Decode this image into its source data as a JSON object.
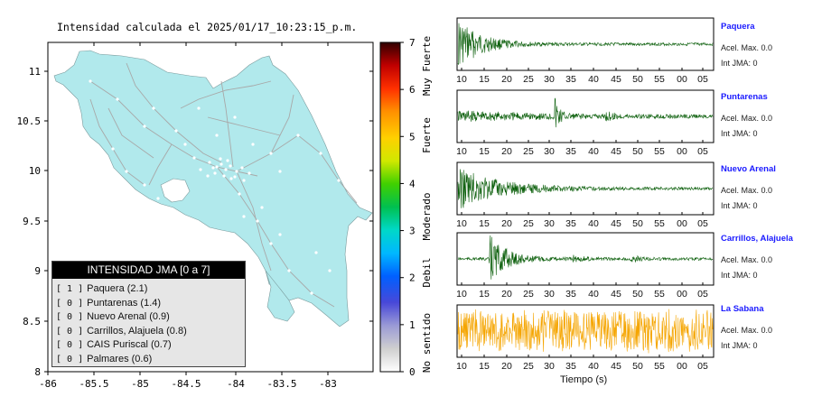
{
  "map": {
    "title": "Intensidad calculada el 2025/01/17_10:23:15_p.m.",
    "x_ticks": [
      "-86",
      "-85.5",
      "-85",
      "-84.5",
      "-84",
      "-83.5",
      "-83"
    ],
    "y_ticks": [
      "11",
      "10.5",
      "10",
      "9.5",
      "9",
      "8.5",
      "8"
    ]
  },
  "scale": {
    "ticks": [
      "7",
      "6",
      "5",
      "4",
      "3",
      "2",
      "1",
      "0"
    ],
    "labels": [
      "Muy Fuerte",
      "Fuerte",
      "Moderado",
      "Debil",
      "No sentido"
    ]
  },
  "legend": {
    "title": "INTENSIDAD JMA [0 a 7]",
    "rows": [
      {
        "level": "[ 1 ]",
        "text": "Paquera (2.1)"
      },
      {
        "level": "[ 0 ]",
        "text": "Puntarenas (1.4)"
      },
      {
        "level": "[ 0 ]",
        "text": "Nuevo Arenal (0.9)"
      },
      {
        "level": "[ 0 ]",
        "text": "Carrillos, Alajuela (0.8)"
      },
      {
        "level": "[ 0 ]",
        "text": "CAIS Puriscal (0.7)"
      },
      {
        "level": "[ 0 ]",
        "text": "Palmares (0.6)"
      }
    ]
  },
  "stations": [
    {
      "name": "Paquera",
      "accel": "Acel. Max. 0.0",
      "int": "Int JMA: 0",
      "color": "#0a5e0a"
    },
    {
      "name": "Puntarenas",
      "accel": "Acel. Max. 0.0",
      "int": "Int JMA: 0",
      "color": "#0a5e0a"
    },
    {
      "name": "Nuevo Arenal",
      "accel": "Acel. Max. 0.0",
      "int": "Int JMA: 0",
      "color": "#0a5e0a"
    },
    {
      "name": "Carrillos, Alajuela",
      "accel": "Acel. Max. 0.0",
      "int": "Int JMA: 0",
      "color": "#0a5e0a"
    },
    {
      "name": "La Sabana",
      "accel": "Acel. Max. 0.0",
      "int": "Int JMA: 0",
      "color": "#f5a500"
    }
  ],
  "time_ticks": [
    "10",
    "15",
    "20",
    "25",
    "30",
    "35",
    "40",
    "45",
    "50",
    "55",
    "00",
    "05"
  ],
  "time_axis_label": "Tiempo (s)",
  "colors": {
    "land": "#b1e9ec",
    "ocean": "#ffffff",
    "roads": "#a8a8a8"
  }
}
